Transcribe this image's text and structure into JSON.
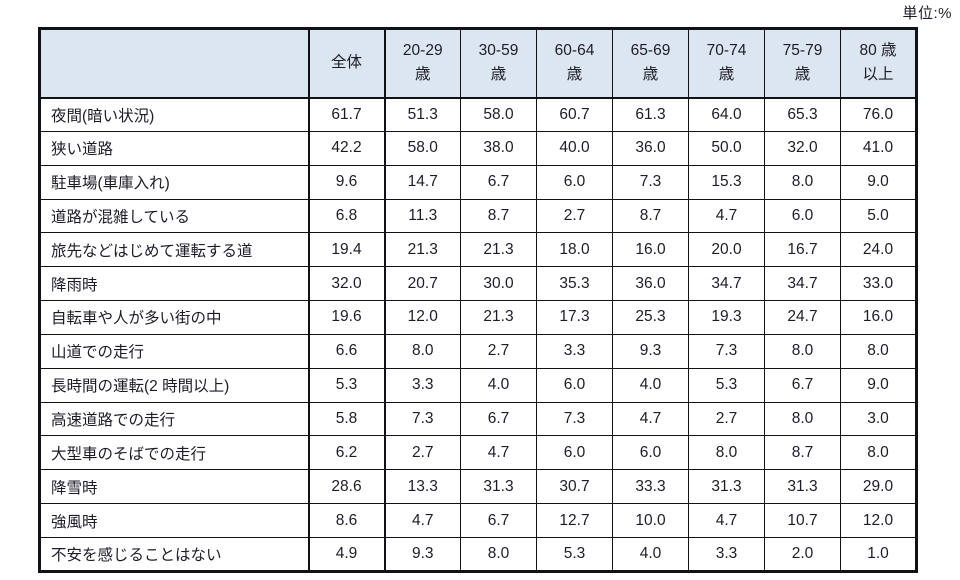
{
  "unit_label": "単位:%",
  "table": {
    "corner_label": "",
    "columns": [
      "全体",
      "20-29\n歳",
      "30-59\n歳",
      "60-64\n歳",
      "65-69\n歳",
      "70-74\n歳",
      "75-79\n歳",
      "80 歳\n以上"
    ],
    "rows": [
      {
        "label": "夜間(暗い状況)",
        "values": [
          "61.7",
          "51.3",
          "58.0",
          "60.7",
          "61.3",
          "64.0",
          "65.3",
          "76.0"
        ]
      },
      {
        "label": "狭い道路",
        "values": [
          "42.2",
          "58.0",
          "38.0",
          "40.0",
          "36.0",
          "50.0",
          "32.0",
          "41.0"
        ]
      },
      {
        "label": "駐車場(車庫入れ)",
        "values": [
          "9.6",
          "14.7",
          "6.7",
          "6.0",
          "7.3",
          "15.3",
          "8.0",
          "9.0"
        ]
      },
      {
        "label": "道路が混雑している",
        "values": [
          "6.8",
          "11.3",
          "8.7",
          "2.7",
          "8.7",
          "4.7",
          "6.0",
          "5.0"
        ]
      },
      {
        "label": "旅先などはじめて運転する道",
        "values": [
          "19.4",
          "21.3",
          "21.3",
          "18.0",
          "16.0",
          "20.0",
          "16.7",
          "24.0"
        ]
      },
      {
        "label": "降雨時",
        "values": [
          "32.0",
          "20.7",
          "30.0",
          "35.3",
          "36.0",
          "34.7",
          "34.7",
          "33.0"
        ]
      },
      {
        "label": "自転車や人が多い街の中",
        "values": [
          "19.6",
          "12.0",
          "21.3",
          "17.3",
          "25.3",
          "19.3",
          "24.7",
          "16.0"
        ]
      },
      {
        "label": "山道での走行",
        "values": [
          "6.6",
          "8.0",
          "2.7",
          "3.3",
          "9.3",
          "7.3",
          "8.0",
          "8.0"
        ]
      },
      {
        "label": "長時間の運転(2 時間以上)",
        "values": [
          "5.3",
          "3.3",
          "4.0",
          "6.0",
          "4.0",
          "5.3",
          "6.7",
          "9.0"
        ]
      },
      {
        "label": "高速道路での走行",
        "values": [
          "5.8",
          "7.3",
          "6.7",
          "7.3",
          "4.7",
          "2.7",
          "8.0",
          "3.0"
        ]
      },
      {
        "label": "大型車のそばでの走行",
        "values": [
          "6.2",
          "2.7",
          "4.7",
          "6.0",
          "6.0",
          "8.0",
          "8.7",
          "8.0"
        ]
      },
      {
        "label": "降雪時",
        "values": [
          "28.6",
          "13.3",
          "31.3",
          "30.7",
          "33.3",
          "31.3",
          "31.3",
          "29.0"
        ]
      },
      {
        "label": "強風時",
        "values": [
          "8.6",
          "4.7",
          "6.7",
          "12.7",
          "10.0",
          "4.7",
          "10.7",
          "12.0"
        ]
      },
      {
        "label": "不安を感じることはない",
        "values": [
          "4.9",
          "9.3",
          "8.0",
          "5.3",
          "4.0",
          "3.3",
          "2.0",
          "1.0"
        ]
      }
    ]
  },
  "colors": {
    "header_bg": "#dce6f1",
    "border": "#111118",
    "text": "#1c1c28",
    "row_bg": "#ffffff"
  }
}
